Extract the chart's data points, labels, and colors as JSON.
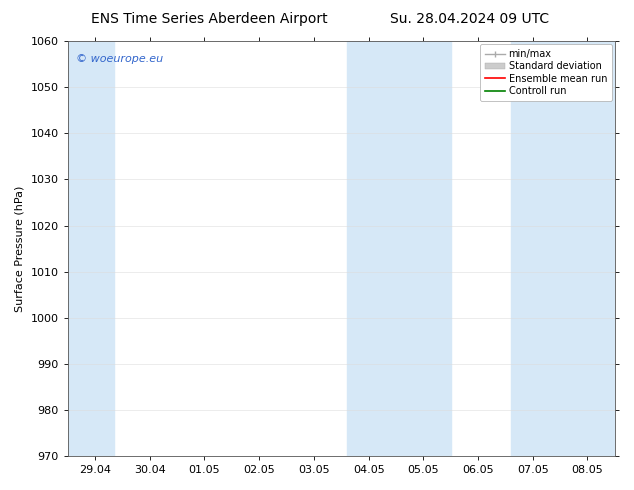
{
  "title_left": "ENS Time Series Aberdeen Airport",
  "title_right": "Su. 28.04.2024 09 UTC",
  "ylabel": "Surface Pressure (hPa)",
  "ylim": [
    970,
    1060
  ],
  "yticks": [
    970,
    980,
    990,
    1000,
    1010,
    1020,
    1030,
    1040,
    1050,
    1060
  ],
  "x_tick_labels": [
    "29.04",
    "30.04",
    "01.05",
    "02.05",
    "03.05",
    "04.05",
    "05.05",
    "06.05",
    "07.05",
    "08.05"
  ],
  "x_tick_positions": [
    0,
    1,
    2,
    3,
    4,
    5,
    6,
    7,
    8,
    9
  ],
  "xlim": [
    -0.5,
    9.5
  ],
  "shaded_bands": [
    {
      "x_start": -0.5,
      "x_end": 0.35
    },
    {
      "x_start": 4.6,
      "x_end": 6.5
    },
    {
      "x_start": 7.6,
      "x_end": 9.5
    }
  ],
  "shade_color": "#d6e8f7",
  "background_color": "#ffffff",
  "watermark_text": "© woeurope.eu",
  "watermark_color": "#3366cc",
  "legend_labels": [
    "min/max",
    "Standard deviation",
    "Ensemble mean run",
    "Controll run"
  ],
  "legend_colors": [
    "#aaaaaa",
    "#cccccc",
    "#ff0000",
    "#008000"
  ],
  "title_fontsize": 10,
  "ylabel_fontsize": 8,
  "tick_fontsize": 8,
  "legend_fontsize": 7,
  "watermark_fontsize": 8
}
